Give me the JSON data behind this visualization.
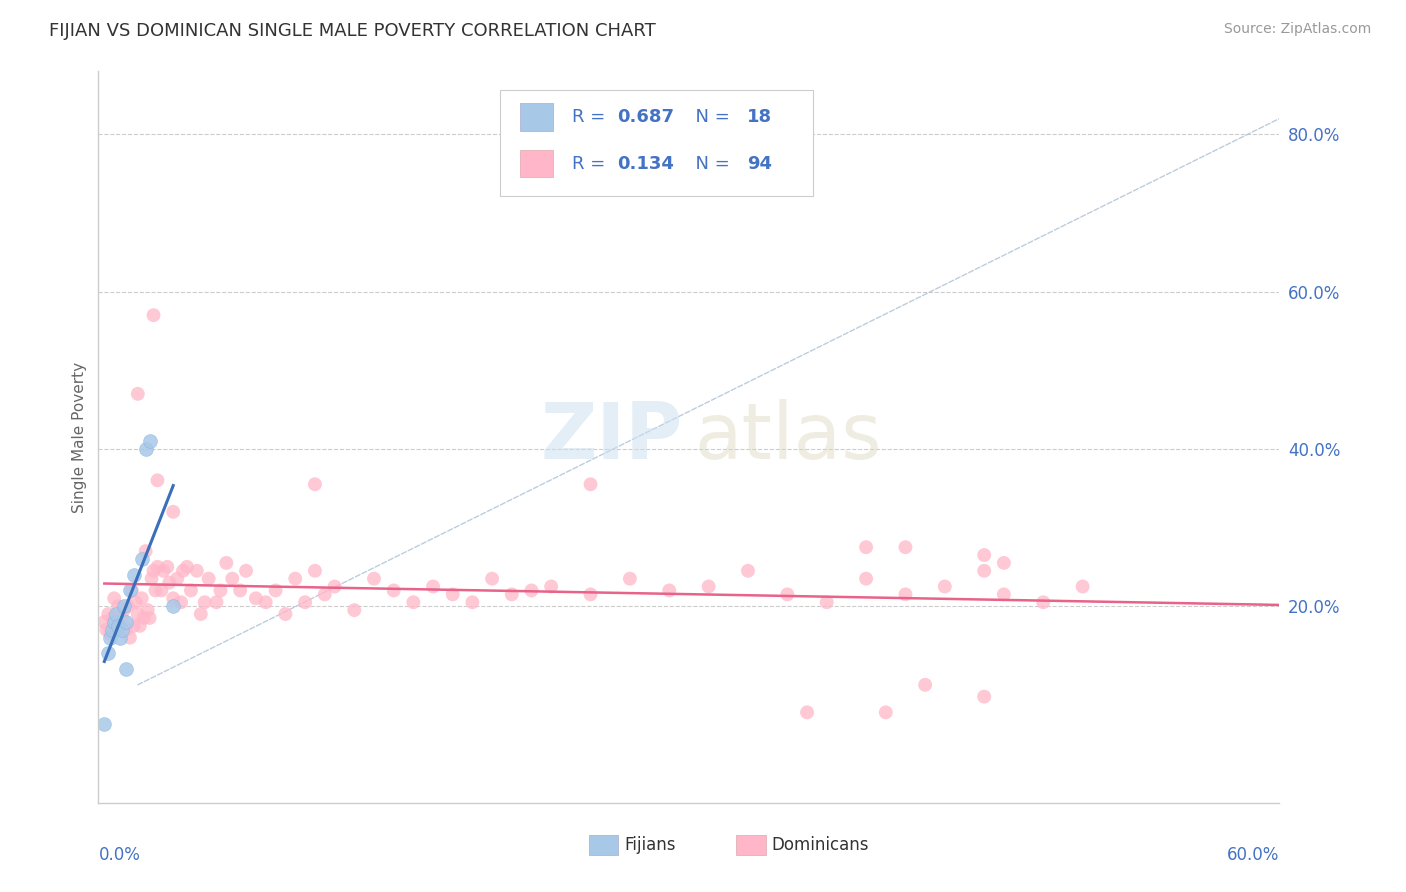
{
  "title": "FIJIAN VS DOMINICAN SINGLE MALE POVERTY CORRELATION CHART",
  "source": "Source: ZipAtlas.com",
  "ylabel": "Single Male Poverty",
  "xlim": [
    0.0,
    0.6
  ],
  "ylim": [
    -0.05,
    0.88
  ],
  "fijian_color": "#a8c8e8",
  "dominican_color": "#ffb6c8",
  "fijian_line_color": "#3a6fba",
  "dominican_line_color": "#e8628a",
  "R_fijian": 0.687,
  "N_fijian": 18,
  "R_dominican": 0.134,
  "N_dominican": 94,
  "ytick_vals": [
    0.2,
    0.4,
    0.6,
    0.8
  ],
  "ytick_labels": [
    "20.0%",
    "40.0%",
    "60.0%",
    "80.0%"
  ],
  "fijian_points": [
    [
      0.003,
      0.05
    ],
    [
      0.005,
      0.14
    ],
    [
      0.006,
      0.16
    ],
    [
      0.007,
      0.17
    ],
    [
      0.008,
      0.18
    ],
    [
      0.009,
      0.19
    ],
    [
      0.01,
      0.175
    ],
    [
      0.011,
      0.16
    ],
    [
      0.012,
      0.17
    ],
    [
      0.013,
      0.2
    ],
    [
      0.014,
      0.18
    ],
    [
      0.016,
      0.22
    ],
    [
      0.018,
      0.24
    ],
    [
      0.022,
      0.26
    ],
    [
      0.024,
      0.4
    ],
    [
      0.026,
      0.41
    ],
    [
      0.038,
      0.2
    ],
    [
      0.014,
      0.12
    ]
  ],
  "dominican_points": [
    [
      0.003,
      0.18
    ],
    [
      0.004,
      0.17
    ],
    [
      0.005,
      0.19
    ],
    [
      0.006,
      0.165
    ],
    [
      0.007,
      0.185
    ],
    [
      0.008,
      0.21
    ],
    [
      0.009,
      0.17
    ],
    [
      0.01,
      0.2
    ],
    [
      0.011,
      0.175
    ],
    [
      0.012,
      0.185
    ],
    [
      0.013,
      0.195
    ],
    [
      0.014,
      0.17
    ],
    [
      0.015,
      0.2
    ],
    [
      0.016,
      0.16
    ],
    [
      0.017,
      0.22
    ],
    [
      0.018,
      0.175
    ],
    [
      0.019,
      0.205
    ],
    [
      0.02,
      0.19
    ],
    [
      0.021,
      0.175
    ],
    [
      0.022,
      0.21
    ],
    [
      0.023,
      0.185
    ],
    [
      0.024,
      0.27
    ],
    [
      0.025,
      0.195
    ],
    [
      0.026,
      0.185
    ],
    [
      0.027,
      0.235
    ],
    [
      0.028,
      0.245
    ],
    [
      0.029,
      0.22
    ],
    [
      0.03,
      0.25
    ],
    [
      0.032,
      0.22
    ],
    [
      0.033,
      0.245
    ],
    [
      0.035,
      0.25
    ],
    [
      0.036,
      0.23
    ],
    [
      0.038,
      0.21
    ],
    [
      0.04,
      0.235
    ],
    [
      0.042,
      0.205
    ],
    [
      0.043,
      0.245
    ],
    [
      0.045,
      0.25
    ],
    [
      0.047,
      0.22
    ],
    [
      0.05,
      0.245
    ],
    [
      0.052,
      0.19
    ],
    [
      0.054,
      0.205
    ],
    [
      0.056,
      0.235
    ],
    [
      0.06,
      0.205
    ],
    [
      0.062,
      0.22
    ],
    [
      0.065,
      0.255
    ],
    [
      0.068,
      0.235
    ],
    [
      0.072,
      0.22
    ],
    [
      0.075,
      0.245
    ],
    [
      0.08,
      0.21
    ],
    [
      0.085,
      0.205
    ],
    [
      0.09,
      0.22
    ],
    [
      0.095,
      0.19
    ],
    [
      0.1,
      0.235
    ],
    [
      0.105,
      0.205
    ],
    [
      0.11,
      0.245
    ],
    [
      0.115,
      0.215
    ],
    [
      0.12,
      0.225
    ],
    [
      0.13,
      0.195
    ],
    [
      0.14,
      0.235
    ],
    [
      0.15,
      0.22
    ],
    [
      0.16,
      0.205
    ],
    [
      0.17,
      0.225
    ],
    [
      0.18,
      0.215
    ],
    [
      0.19,
      0.205
    ],
    [
      0.2,
      0.235
    ],
    [
      0.21,
      0.215
    ],
    [
      0.22,
      0.22
    ],
    [
      0.23,
      0.225
    ],
    [
      0.25,
      0.215
    ],
    [
      0.27,
      0.235
    ],
    [
      0.29,
      0.22
    ],
    [
      0.31,
      0.225
    ],
    [
      0.33,
      0.245
    ],
    [
      0.35,
      0.215
    ],
    [
      0.37,
      0.205
    ],
    [
      0.39,
      0.235
    ],
    [
      0.41,
      0.215
    ],
    [
      0.43,
      0.225
    ],
    [
      0.45,
      0.245
    ],
    [
      0.46,
      0.215
    ],
    [
      0.48,
      0.205
    ],
    [
      0.5,
      0.225
    ],
    [
      0.02,
      0.47
    ],
    [
      0.028,
      0.57
    ],
    [
      0.03,
      0.36
    ],
    [
      0.038,
      0.32
    ],
    [
      0.11,
      0.355
    ],
    [
      0.25,
      0.355
    ],
    [
      0.39,
      0.275
    ],
    [
      0.41,
      0.275
    ],
    [
      0.45,
      0.265
    ],
    [
      0.46,
      0.255
    ],
    [
      0.42,
      0.1
    ],
    [
      0.45,
      0.085
    ],
    [
      0.36,
      0.065
    ],
    [
      0.4,
      0.065
    ]
  ]
}
